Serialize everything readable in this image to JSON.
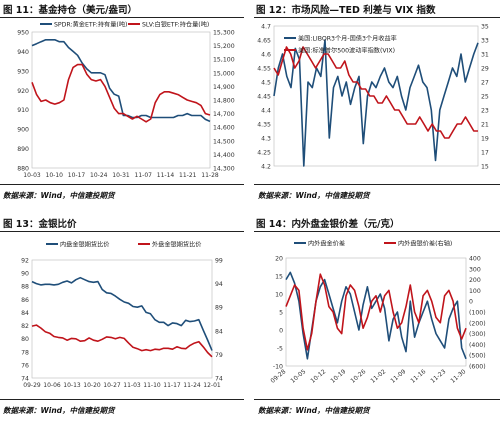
{
  "panels": [
    {
      "title": "图 11：基金持仓（美元/盎司）",
      "source": "数据来源：Wind，中信建投期货",
      "chart_data": {
        "type": "line",
        "xticks": [
          "10-03",
          "10-10",
          "10-17",
          "10-24",
          "10-31",
          "11-07",
          "11-14",
          "11-21",
          "11-28"
        ],
        "y_left": {
          "lim": [
            880,
            950
          ],
          "ticks": [
            "880",
            "890",
            "900",
            "910",
            "920",
            "930",
            "940",
            "950"
          ]
        },
        "y_right": {
          "lim": [
            14300,
            15300
          ],
          "ticks": [
            "14,300",
            "14,400",
            "14,500",
            "14,600",
            "14,700",
            "14,800",
            "14,900",
            "15,000",
            "15,100",
            "15,200",
            "15,300"
          ]
        },
        "grid": false,
        "legend_position": "top",
        "series": [
          {
            "name": "SPDR:黄金ETF:持有量(吨)",
            "axis": "left",
            "color": "#1f4e79",
            "values": [
              943,
              944,
              945,
              946,
              946,
              946,
              945,
              945,
              942,
              940,
              938,
              934,
              931,
              929,
              929,
              929,
              928,
              921,
              918,
              917,
              907,
              907,
              906,
              906,
              907,
              907,
              906,
              906,
              906,
              906,
              906,
              906,
              907,
              907,
              908,
              907,
              907,
              907,
              905,
              904
            ]
          },
          {
            "name": "SLV:白银ETF:持仓量(吨)",
            "axis": "right",
            "color": "#c0141b",
            "values": [
              14930,
              14840,
              14790,
              14800,
              14780,
              14770,
              14780,
              14800,
              14950,
              15040,
              15060,
              15060,
              14990,
              14950,
              14940,
              14950,
              14900,
              14820,
              14740,
              14700,
              14700,
              14680,
              14660,
              14680,
              14660,
              14640,
              14660,
              14780,
              14840,
              14860,
              14860,
              14850,
              14840,
              14820,
              14800,
              14790,
              14780,
              14760,
              14700,
              14690
            ]
          }
        ]
      }
    },
    {
      "title": "图 12：市场风险—TED 利差与 VIX 指数",
      "source": "数据来源：Wind，中信建投期货",
      "chart_data": {
        "type": "line",
        "xticks": [],
        "y_left": {
          "lim": [
            4.2,
            4.7
          ],
          "ticks": [
            "4.2",
            "4.25",
            "4.3",
            "4.35",
            "4.4",
            "4.45",
            "4.5",
            "4.55",
            "4.6",
            "4.65",
            "4.7"
          ]
        },
        "y_right": {
          "lim": [
            15,
            35
          ],
          "ticks": [
            "15",
            "17",
            "19",
            "21",
            "23",
            "25",
            "27",
            "29",
            "31",
            "33",
            "35"
          ]
        },
        "grid": false,
        "legend_position": "top-left",
        "series": [
          {
            "name": "美国:LIBOR3个月-国债3个月收益率",
            "axis": "left",
            "color": "#1f4e79",
            "values": [
              4.45,
              4.55,
              4.6,
              4.52,
              4.48,
              4.62,
              4.58,
              4.2,
              4.5,
              4.48,
              4.55,
              4.52,
              4.65,
              4.3,
              4.48,
              4.52,
              4.45,
              4.5,
              4.42,
              4.48,
              4.52,
              4.28,
              4.45,
              4.5,
              4.48,
              4.52,
              4.55,
              4.5,
              4.48,
              4.52,
              4.45,
              4.4,
              4.48,
              4.52,
              4.56,
              4.5,
              4.48,
              4.4,
              4.22,
              4.4,
              4.45,
              4.5,
              4.55,
              4.52,
              4.6,
              4.5,
              4.55,
              4.6,
              4.64
            ]
          },
          {
            "name": "美国:标准普尔500波动率指数(VIX)",
            "axis": "right",
            "color": "#c0141b",
            "values": [
              29,
              28,
              30,
              32,
              31,
              29,
              30,
              32,
              31,
              30,
              29,
              30,
              31,
              31,
              30,
              29,
              29,
              30,
              28,
              27,
              27,
              26,
              26,
              25,
              25,
              24,
              24,
              25,
              24,
              23,
              23,
              22,
              21,
              21,
              21,
              22,
              21,
              20,
              21,
              20,
              20,
              19,
              19,
              20,
              21,
              21,
              22,
              21,
              20,
              20
            ]
          }
        ]
      }
    },
    {
      "title": "图 13：金银比价",
      "source": "数据来源：Wind，中信建投期货",
      "chart_data": {
        "type": "line",
        "xticks": [
          "09-29",
          "10-06",
          "10-13",
          "10-20",
          "10-27",
          "11-03",
          "11-10",
          "11-17",
          "11-24",
          "12-01"
        ],
        "y_left": {
          "lim": [
            74,
            92
          ],
          "ticks": [
            "74",
            "76",
            "78",
            "80",
            "82",
            "84",
            "86",
            "88",
            "90",
            "92"
          ]
        },
        "y_right": {
          "lim": [
            74,
            99
          ],
          "ticks": [
            "74",
            "79",
            "84",
            "89",
            "94",
            "99"
          ]
        },
        "grid": false,
        "legend_position": "top",
        "series": [
          {
            "name": "内盘金银期货比价",
            "axis": "left",
            "color": "#1f4e79",
            "values": [
              88.7,
              88.4,
              88.2,
              88.3,
              88.3,
              88.2,
              88.3,
              88.6,
              88.8,
              88.5,
              89.0,
              89.3,
              89.0,
              88.7,
              88.6,
              88.7,
              87.5,
              87.0,
              86.9,
              86.5,
              86.0,
              85.6,
              85.4,
              84.9,
              84.8,
              85.0,
              84.0,
              83.8,
              82.9,
              82.5,
              82.5,
              82.0,
              82.4,
              82.3,
              82.0,
              82.8,
              82.6,
              82.7,
              82.9,
              81.3,
              79.8,
              78.2
            ]
          },
          {
            "name": "外盘金银期货比价",
            "axis": "right",
            "color": "#c0141b",
            "values": [
              85.0,
              85.2,
              84.6,
              83.8,
              83.5,
              82.8,
              82.6,
              82.5,
              82.0,
              82.4,
              82.3,
              81.8,
              81.9,
              82.5,
              82.0,
              81.8,
              82.2,
              82.7,
              82.6,
              82.3,
              82.6,
              82.4,
              81.4,
              80.5,
              80.2,
              79.8,
              80.0,
              79.8,
              80.1,
              80.0,
              80.3,
              80.3,
              80.1,
              80.6,
              80.3,
              80.2,
              80.9,
              81.4,
              81.7,
              80.6,
              79.4,
              78.5
            ]
          }
        ]
      }
    },
    {
      "title": "图 14：内外盘金银价差（元/克）",
      "source": "数据来源：Wind，中信建投期货",
      "chart_data": {
        "type": "line",
        "xticks": [
          "09-28",
          "10-05",
          "10-12",
          "10-19",
          "10-26",
          "11-02",
          "11-09",
          "11-16",
          "11-23",
          "11-30"
        ],
        "y_left": {
          "lim": [
            -10,
            20
          ],
          "ticks": [
            "-10",
            "-5",
            "0",
            "5",
            "10",
            "15",
            "20"
          ]
        },
        "y_right": {
          "lim": [
            -600,
            400
          ],
          "ticks": [
            "(600)",
            "(500)",
            "(400)",
            "(300)",
            "(200)",
            "(100)",
            "0",
            "100",
            "200",
            "300",
            "400"
          ]
        },
        "grid": false,
        "legend_position": "top",
        "series": [
          {
            "name": "内外盘金价差",
            "axis": "left",
            "color": "#1f4e79",
            "values": [
              14,
              16,
              13,
              8,
              -1,
              -8,
              0,
              8,
              12,
              14,
              10,
              6,
              2,
              8,
              12,
              10,
              5,
              0,
              7,
              12,
              6,
              8,
              10,
              6,
              -3,
              3,
              5,
              -2,
              -6,
              8,
              -2,
              2,
              5,
              8,
              3,
              -1,
              -3,
              -5,
              3,
              6,
              8,
              -5,
              -8
            ]
          },
          {
            "name": "内外盘银价差(右轴)",
            "axis": "right",
            "color": "#c0141b",
            "values": [
              -50,
              50,
              150,
              100,
              -250,
              -450,
              -300,
              0,
              250,
              150,
              -50,
              -100,
              -250,
              -300,
              50,
              150,
              100,
              -50,
              -250,
              -150,
              0,
              50,
              -100,
              50,
              100,
              -100,
              -250,
              -200,
              -50,
              150,
              -100,
              -200,
              50,
              100,
              0,
              -150,
              -200,
              50,
              100,
              0,
              -250,
              -350,
              -250
            ]
          }
        ]
      }
    }
  ]
}
